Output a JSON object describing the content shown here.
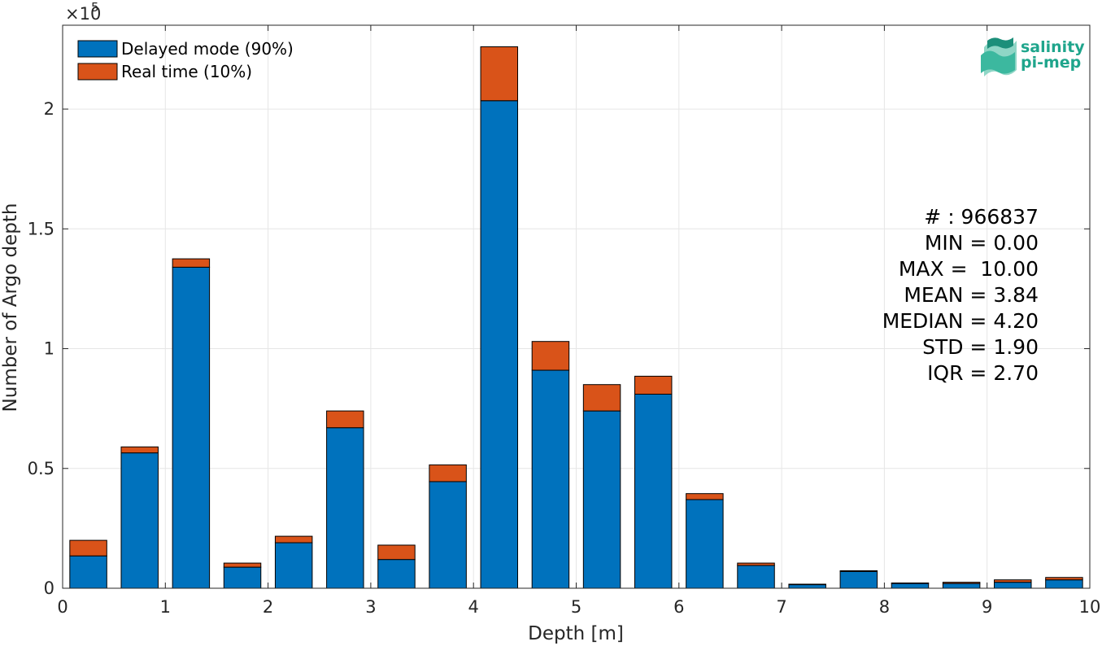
{
  "chart_data": {
    "type": "bar",
    "stacked": true,
    "x": [
      0.25,
      0.75,
      1.25,
      1.75,
      2.25,
      2.75,
      3.25,
      3.75,
      4.25,
      4.75,
      5.25,
      5.75,
      6.25,
      6.75,
      7.25,
      7.75,
      8.25,
      8.75,
      9.25,
      9.75
    ],
    "series": [
      {
        "name": "Delayed mode (90%)",
        "color": "#0072BD",
        "values": [
          13500,
          56500,
          134000,
          8800,
          19000,
          67000,
          12000,
          44500,
          203500,
          91000,
          74000,
          81000,
          37000,
          9500,
          1500,
          7000,
          2000,
          2000,
          2500,
          3500
        ]
      },
      {
        "name": "Real time (10%)",
        "color": "#D95319",
        "values": [
          6500,
          2500,
          3500,
          1700,
          2700,
          7000,
          6000,
          7000,
          22500,
          12000,
          11000,
          7500,
          2500,
          1000,
          200,
          300,
          200,
          500,
          1000,
          1000
        ]
      }
    ],
    "xlabel": "Depth [m]",
    "ylabel": "Number of Argo depth",
    "xlim": [
      0,
      10
    ],
    "ylim": [
      0,
      235000
    ],
    "xticks": [
      0,
      1,
      2,
      3,
      4,
      5,
      6,
      7,
      8,
      9,
      10
    ],
    "yticks": [
      0,
      50000,
      100000,
      150000,
      200000
    ],
    "ytick_labels": [
      "0",
      "0.5",
      "1",
      "1.5",
      "2"
    ],
    "y_exponent_label": "×10",
    "y_exponent": "5",
    "grid": true,
    "legend_position": "top-left",
    "stats": [
      "# : 966837",
      "MIN = 0.00",
      "MAX =  10.00",
      "MEAN = 3.84",
      "MEDIAN = 4.20",
      "STD = 1.90",
      "IQR = 2.70"
    ]
  },
  "logo": {
    "line1": "salinity",
    "line2": "pi-mep",
    "color": "#1fa58c"
  }
}
